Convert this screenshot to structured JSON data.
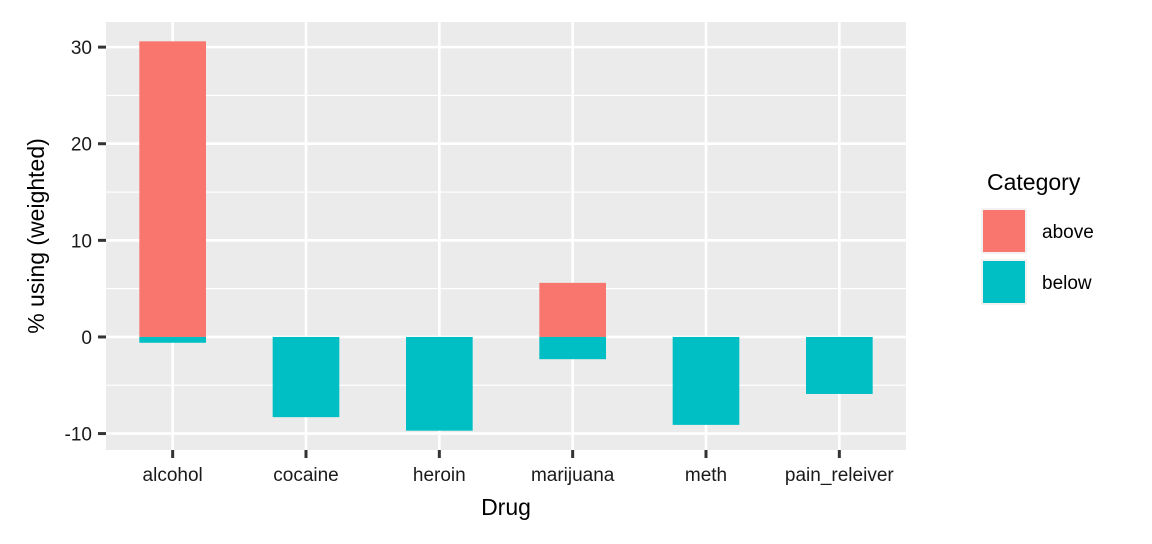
{
  "chart_data": {
    "type": "bar",
    "stacked": true,
    "categories": [
      "alcohol",
      "cocaine",
      "heroin",
      "marijuana",
      "meth",
      "pain_releiver"
    ],
    "series": [
      {
        "name": "above",
        "color": "#F8766D",
        "values": [
          30.6,
          0,
          0,
          5.6,
          0,
          0
        ]
      },
      {
        "name": "below",
        "color": "#00BFC4",
        "values": [
          -0.6,
          -8.3,
          -9.7,
          -2.3,
          -9.1,
          -5.9
        ]
      }
    ],
    "xlabel": "Drug",
    "ylabel": "% using (weighted)",
    "ylim": [
      -11.7,
      32.6
    ],
    "yticks": [
      -10,
      0,
      10,
      20,
      30
    ],
    "ytick_labels": [
      "-10",
      "0",
      "10",
      "20",
      "30"
    ],
    "grid": true,
    "panel_background": "#EBEBEB",
    "legend": {
      "title": "Category",
      "position": "right",
      "entries": [
        "above",
        "below"
      ]
    }
  }
}
